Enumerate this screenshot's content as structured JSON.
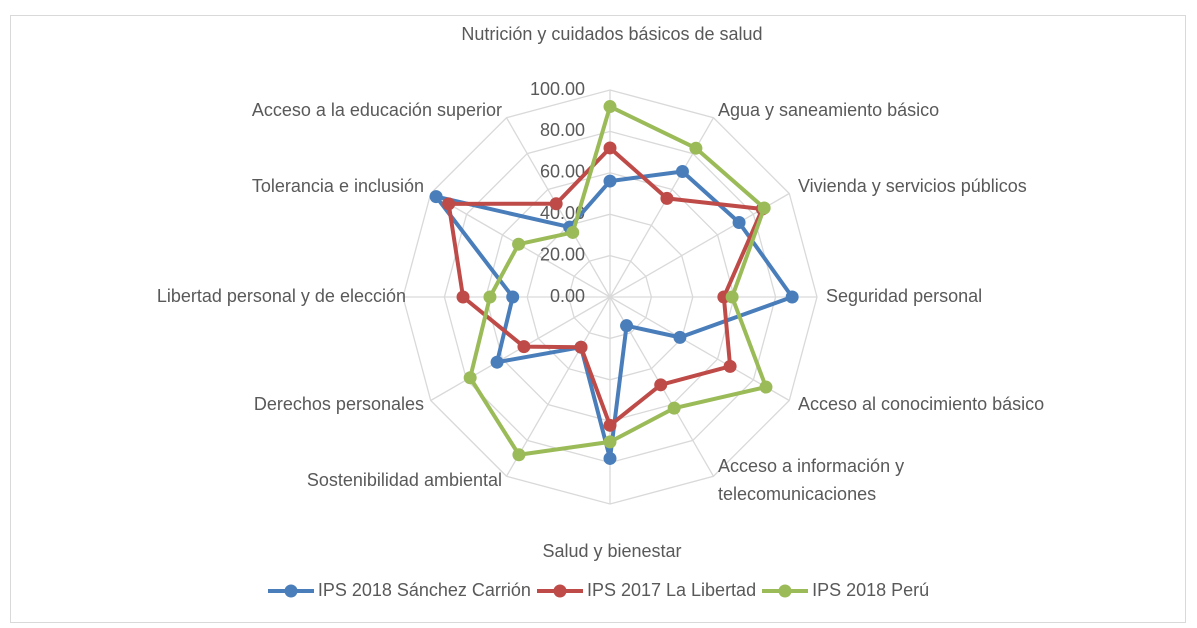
{
  "chart_data": {
    "type": "radar",
    "categories": [
      "Nutrición y cuidados básicos de salud",
      "Agua y saneamiento básico",
      "Vivienda y servicios públicos",
      "Seguridad personal",
      "Acceso al conocimiento básico",
      "Acceso a información y telecomunicaciones",
      "Salud y bienestar",
      "Sostenibilidad ambiental",
      "Derechos personales",
      "Libertad personal y de elección",
      "Tolerancia e inclusión",
      "Acceso a la educación superior"
    ],
    "series": [
      {
        "name": "IPS 2018 Sánchez Carrión",
        "color": "#4a7ebb",
        "values": [
          56,
          70,
          72,
          88,
          39,
          16,
          78,
          28,
          63,
          47,
          97,
          39
        ]
      },
      {
        "name": "IPS 2017 La Libertad",
        "color": "#be4b48",
        "values": [
          72,
          55,
          85,
          55,
          67,
          49,
          62,
          28,
          48,
          71,
          90,
          52
        ]
      },
      {
        "name": "IPS 2018 Perú",
        "color": "#9bbb59",
        "values": [
          92,
          83,
          86,
          59,
          87,
          62,
          70,
          88,
          78,
          58,
          51,
          36
        ]
      }
    ],
    "ylim": [
      0,
      100
    ],
    "yticks": [
      {
        "value": 0,
        "label": "0.00"
      },
      {
        "value": 20,
        "label": "20.00"
      },
      {
        "value": 40,
        "label": "40.00"
      },
      {
        "value": 60,
        "label": "60.00"
      },
      {
        "value": 80,
        "label": "80.00"
      },
      {
        "value": 100,
        "label": "100.00"
      }
    ],
    "grid": true,
    "legend": "bottom"
  }
}
